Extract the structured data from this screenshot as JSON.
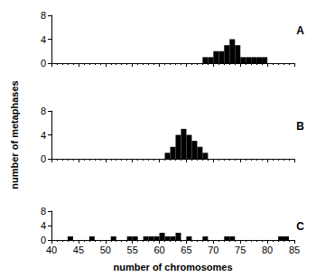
{
  "chart_data": [
    {
      "type": "histogram",
      "title": "A",
      "bins": [
        68,
        69,
        70,
        71,
        72,
        73,
        74,
        75,
        76,
        77,
        78,
        79,
        80
      ],
      "counts": [
        1,
        1,
        2,
        2,
        3,
        4,
        3,
        1,
        1,
        1,
        1,
        1
      ],
      "color": "#000000",
      "xlim": [
        40,
        85
      ],
      "ylim": [
        0,
        8
      ],
      "xticks": [
        40,
        45,
        50,
        55,
        60,
        65,
        70,
        75,
        80,
        85
      ],
      "yticks": [
        0,
        4,
        8
      ],
      "grid": false,
      "tick_labels": "y"
    },
    {
      "type": "histogram",
      "title": "B",
      "ylabel": "number of metaphases",
      "bins": [
        61,
        62,
        63,
        64,
        65,
        66,
        67,
        68,
        69
      ],
      "counts": [
        1,
        2,
        4,
        5,
        4,
        3,
        2,
        1
      ],
      "color": "#000000",
      "xlim": [
        40,
        85
      ],
      "ylim": [
        0,
        8
      ],
      "xticks": [
        40,
        45,
        50,
        55,
        60,
        65,
        70,
        75,
        80,
        85
      ],
      "yticks": [
        0,
        4,
        8
      ],
      "grid": false,
      "tick_labels": "y"
    },
    {
      "type": "histogram",
      "title": "C",
      "xlabel": "number of chromosomes",
      "bins": [
        43,
        44,
        45,
        46,
        47,
        48,
        49,
        50,
        51,
        52,
        53,
        54,
        55,
        56,
        57,
        58,
        59,
        60,
        61,
        62,
        63,
        64,
        65,
        66,
        67,
        68,
        69,
        70,
        71,
        72,
        73,
        74,
        75,
        76,
        77,
        78,
        79,
        80,
        81,
        82,
        83,
        84
      ],
      "counts": [
        1,
        0,
        0,
        0,
        1,
        0,
        0,
        0,
        1,
        0,
        0,
        1,
        1,
        0,
        1,
        1,
        1,
        2,
        1,
        1,
        2,
        0,
        1,
        0,
        0,
        1,
        0,
        0,
        0,
        1,
        1,
        0,
        0,
        0,
        0,
        0,
        0,
        0,
        0,
        1,
        1
      ],
      "color": "#000000",
      "xlim": [
        40,
        85
      ],
      "ylim": [
        0,
        8
      ],
      "xticks": [
        40,
        45,
        50,
        55,
        60,
        65,
        70,
        75,
        80,
        85
      ],
      "yticks": [
        0,
        4,
        8
      ],
      "grid": false
    }
  ]
}
